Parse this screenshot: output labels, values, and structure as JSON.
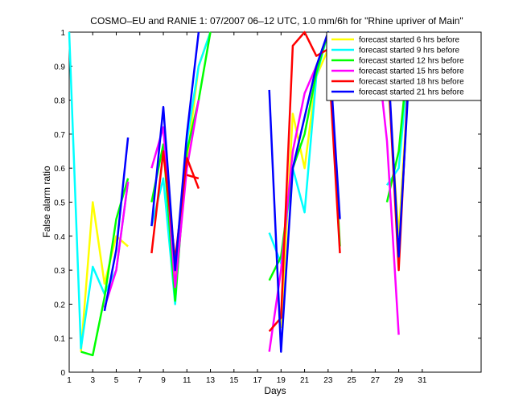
{
  "chart_data": {
    "type": "line",
    "title": "COSMO–EU and RANIE 1: 07/2007 06–12 UTC, 1.0 mm/6h for \"Rhine upriver of Main\"",
    "xlabel": "Days",
    "ylabel": "False alarm ratio",
    "xlim": [
      1,
      36
    ],
    "ylim": [
      0,
      1
    ],
    "x_ticks": [
      1,
      3,
      5,
      7,
      9,
      11,
      13,
      15,
      17,
      19,
      21,
      23,
      25,
      27,
      29,
      31
    ],
    "y_ticks": [
      0,
      0.1,
      0.2,
      0.3,
      0.4,
      0.5,
      0.6,
      0.7,
      0.8,
      0.9,
      1
    ],
    "y_tick_labels": [
      "0",
      "0.1",
      "0.2",
      "0.3",
      "0.4",
      "0.5",
      "0.6",
      "0.7",
      "0.8",
      "0.9",
      "1"
    ],
    "grid": false,
    "legend_position": "top-right",
    "series": [
      {
        "name": "forecast started 6 hrs before",
        "color": "#ffff00",
        "segments": [
          [
            [
              2,
              0.06
            ],
            [
              3,
              0.5
            ],
            [
              4,
              0.26
            ],
            [
              5,
              0.4
            ],
            [
              6,
              0.37
            ]
          ],
          [
            [
              9,
              0.65
            ],
            [
              10,
              0.28
            ],
            [
              11,
              0.62
            ],
            [
              12,
              0.9
            ],
            [
              13,
              1.0
            ]
          ],
          [
            [
              19,
              0.13
            ],
            [
              20,
              0.76
            ],
            [
              21,
              0.6
            ],
            [
              22,
              0.87
            ],
            [
              23,
              0.95
            ]
          ],
          [
            [
              27,
              1.0
            ],
            [
              28,
              0.9
            ],
            [
              29,
              0.4
            ],
            [
              30,
              0.95
            ]
          ]
        ]
      },
      {
        "name": "forecast started 9 hrs before",
        "color": "#00ffff",
        "segments": [
          [
            [
              1,
              1.0
            ],
            [
              2,
              0.07
            ],
            [
              3,
              0.31
            ],
            [
              4,
              0.23
            ],
            [
              5,
              0.3
            ],
            [
              6,
              0.56
            ]
          ],
          [
            [
              8,
              0.43
            ],
            [
              9,
              0.57
            ],
            [
              10,
              0.2
            ],
            [
              11,
              0.68
            ],
            [
              12,
              0.9
            ],
            [
              13,
              1.0
            ]
          ],
          [
            [
              18,
              0.41
            ],
            [
              19,
              0.32
            ],
            [
              20,
              0.6
            ],
            [
              21,
              0.47
            ],
            [
              22,
              0.87
            ],
            [
              23,
              1.0
            ]
          ],
          [
            [
              28,
              0.55
            ],
            [
              29,
              0.6
            ],
            [
              30,
              0.97
            ]
          ]
        ]
      },
      {
        "name": "forecast started 12 hrs before",
        "color": "#00ff00",
        "segments": [
          [
            [
              2,
              0.06
            ],
            [
              3,
              0.05
            ],
            [
              4,
              0.22
            ],
            [
              5,
              0.45
            ],
            [
              6,
              0.57
            ]
          ],
          [
            [
              8,
              0.5
            ],
            [
              9,
              0.67
            ],
            [
              10,
              0.21
            ],
            [
              11,
              0.65
            ],
            [
              12,
              0.8
            ],
            [
              13,
              1.0
            ]
          ],
          [
            [
              18,
              0.27
            ],
            [
              19,
              0.34
            ],
            [
              20,
              0.6
            ],
            [
              21,
              0.7
            ],
            [
              22,
              0.88
            ],
            [
              23,
              1.0
            ],
            [
              24,
              0.37
            ]
          ],
          [
            [
              28,
              0.5
            ],
            [
              29,
              0.65
            ],
            [
              30,
              1.0
            ]
          ]
        ]
      },
      {
        "name": "forecast started 15 hrs before",
        "color": "#ff00ff",
        "segments": [
          [
            [
              4,
              0.19
            ],
            [
              5,
              0.3
            ],
            [
              6,
              0.56
            ]
          ],
          [
            [
              8,
              0.6
            ],
            [
              9,
              0.72
            ],
            [
              10,
              0.25
            ],
            [
              11,
              0.6
            ],
            [
              12,
              0.8
            ]
          ],
          [
            [
              18,
              0.06
            ],
            [
              19,
              0.3
            ],
            [
              20,
              0.65
            ],
            [
              21,
              0.82
            ],
            [
              22,
              0.9
            ]
          ],
          [
            [
              27,
              1.0
            ],
            [
              28,
              0.68
            ],
            [
              29,
              0.11
            ]
          ]
        ]
      },
      {
        "name": "forecast started 18 hrs before",
        "color": "#ff0000",
        "segments": [
          [
            [
              8,
              0.35
            ],
            [
              9,
              0.65
            ],
            [
              10,
              0.33
            ],
            [
              11,
              0.63
            ],
            [
              12,
              0.54
            ]
          ],
          [
            [
              11,
              0.58
            ],
            [
              12,
              0.57
            ]
          ],
          [
            [
              18,
              0.12
            ],
            [
              19,
              0.16
            ],
            [
              20,
              0.96
            ],
            [
              21,
              1.0
            ],
            [
              22,
              0.93
            ],
            [
              23,
              0.95
            ],
            [
              24,
              0.35
            ]
          ],
          [
            [
              27,
              1.0
            ],
            [
              28,
              0.95
            ],
            [
              29,
              0.3
            ],
            [
              30,
              1.0
            ]
          ]
        ]
      },
      {
        "name": "forecast started 21 hrs before",
        "color": "#0000ff",
        "segments": [
          [
            [
              4,
              0.18
            ],
            [
              5,
              0.36
            ],
            [
              6,
              0.69
            ]
          ],
          [
            [
              8,
              0.43
            ],
            [
              9,
              0.78
            ],
            [
              10,
              0.3
            ],
            [
              11,
              0.7
            ],
            [
              12,
              1.0
            ]
          ],
          [
            [
              18,
              0.83
            ],
            [
              19,
              0.06
            ],
            [
              20,
              0.6
            ],
            [
              21,
              0.75
            ],
            [
              22,
              0.9
            ],
            [
              23,
              1.0
            ],
            [
              24,
              0.45
            ]
          ],
          [
            [
              28,
              0.97
            ],
            [
              29,
              0.34
            ],
            [
              30,
              0.95
            ]
          ]
        ]
      }
    ]
  }
}
